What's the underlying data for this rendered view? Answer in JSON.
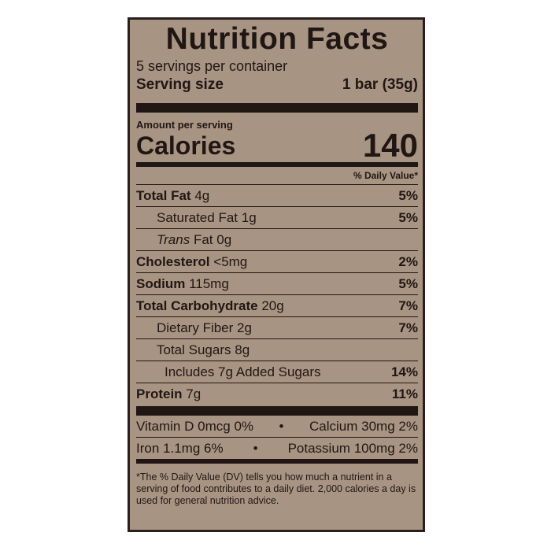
{
  "label": {
    "title": "Nutrition Facts",
    "servings_per_container": "5 servings per container",
    "serving_size": {
      "label": "Serving size",
      "value": "1 bar (35g)"
    },
    "amount_per_serving": "Amount per serving",
    "calories": {
      "label": "Calories",
      "value": "140"
    },
    "daily_value_header": "% Daily Value*",
    "nutrients": [
      {
        "name": "Total Fat",
        "amount": "4g",
        "dv": "5%"
      },
      {
        "name": "Saturated Fat",
        "amount": "1g",
        "dv": "5%"
      },
      {
        "name_prefix": "Trans",
        "name": "Fat",
        "amount": "0g"
      },
      {
        "name": "Cholesterol",
        "amount": "<5mg",
        "dv": "2%"
      },
      {
        "name": "Sodium",
        "amount": "115mg",
        "dv": "5%"
      },
      {
        "name": "Total Carbohydrate",
        "amount": "20g",
        "dv": "7%"
      },
      {
        "name": "Dietary Fiber",
        "amount": "2g",
        "dv": "7%"
      },
      {
        "name": "Total Sugars",
        "amount": "8g"
      },
      {
        "name": "Includes 7g Added Sugars",
        "dv": "14%"
      },
      {
        "name": "Protein",
        "amount": "7g",
        "dv": "11%"
      }
    ],
    "vitamins": [
      [
        {
          "name": "Vitamin D",
          "amount": "0mcg",
          "dv": "0%"
        },
        {
          "name": "Calcium",
          "amount": "30mg",
          "dv": "2%"
        }
      ],
      [
        {
          "name": "Iron",
          "amount": "1.1mg",
          "dv": "6%"
        },
        {
          "name": "Potassium",
          "amount": "100mg",
          "dv": "2%"
        }
      ]
    ],
    "vitamin_separator": "•",
    "footnote": "*The % Daily Value (DV) tells you how much a nutrient in a serving of food contributes to a daily diet. 2,000 calories a day is used for general nutrition advice."
  }
}
